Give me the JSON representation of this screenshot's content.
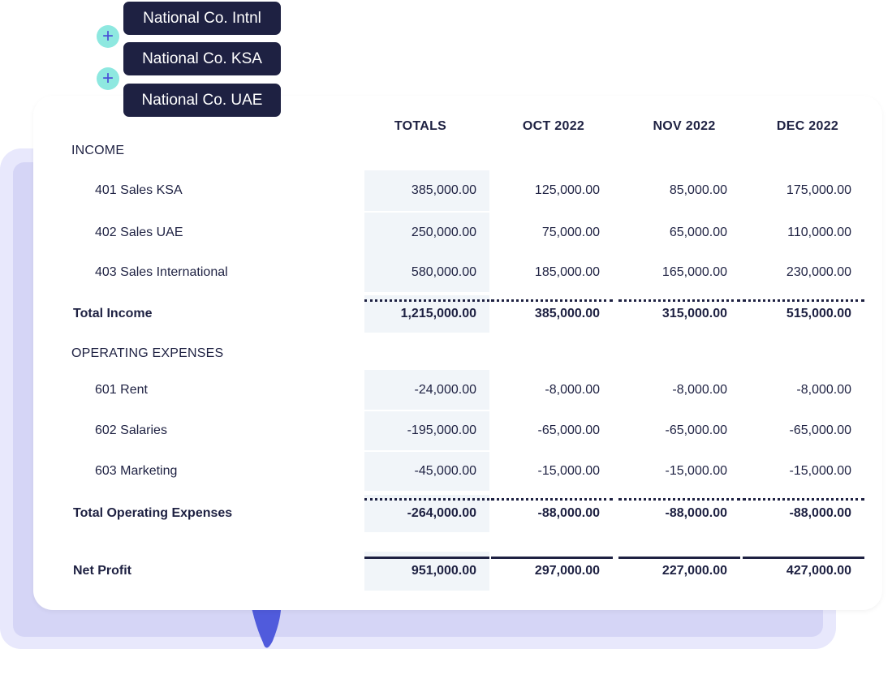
{
  "entities": [
    "National Co. Intnl",
    "National Co. KSA",
    "National Co. UAE"
  ],
  "plus_icon": "+",
  "columns": [
    "TOTALS",
    "OCT 2022",
    "NOV 2022",
    "DEC 2022"
  ],
  "sections": {
    "income": "INCOME",
    "opex": "OPERATING EXPENSES"
  },
  "rows": [
    {
      "label": "401 Sales KSA",
      "values": [
        "385,000.00",
        "125,000.00",
        "85,000.00",
        "175,000.00"
      ]
    },
    {
      "label": "402 Sales UAE",
      "values": [
        "250,000.00",
        "75,000.00",
        "65,000.00",
        "110,000.00"
      ]
    },
    {
      "label": "403 Sales International",
      "values": [
        "580,000.00",
        "185,000.00",
        "165,000.00",
        "230,000.00"
      ]
    },
    {
      "label": "Total Income",
      "values": [
        "1,215,000.00",
        "385,000.00",
        "315,000.00",
        "515,000.00"
      ]
    },
    {
      "label": "601 Rent",
      "values": [
        "-24,000.00",
        "-8,000.00",
        "-8,000.00",
        "-8,000.00"
      ]
    },
    {
      "label": "602 Salaries",
      "values": [
        "-195,000.00",
        "-65,000.00",
        "-65,000.00",
        "-65,000.00"
      ]
    },
    {
      "label": "603 Marketing",
      "values": [
        "-45,000.00",
        "-15,000.00",
        "-15,000.00",
        "-15,000.00"
      ]
    },
    {
      "label": "Total Operating Expenses",
      "values": [
        "-264,000.00",
        "-88,000.00",
        "-88,000.00",
        "-88,000.00"
      ]
    },
    {
      "label": "Net Profit",
      "values": [
        "951,000.00",
        "297,000.00",
        "227,000.00",
        "427,000.00"
      ]
    }
  ]
}
